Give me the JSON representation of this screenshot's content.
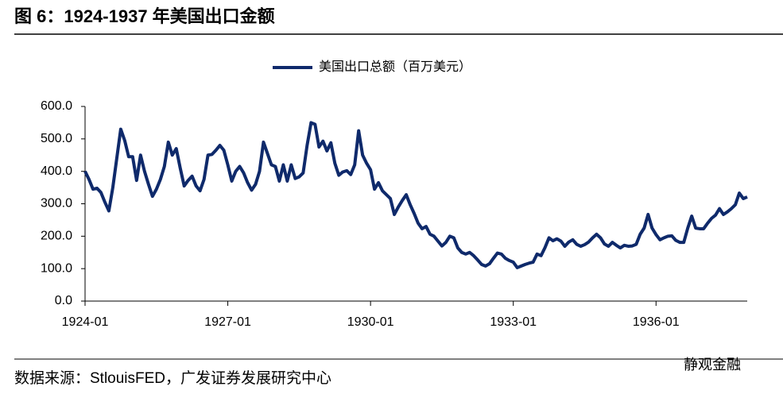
{
  "chart_data": {
    "type": "line",
    "title": "图 6：1924-1937 年美国出口金额",
    "source": "数据来源：StlouisFED，广发证券发展研究中心",
    "watermark": "静观金融",
    "x": [
      "1924-01",
      "1924-02",
      "1924-03",
      "1924-04",
      "1924-05",
      "1924-06",
      "1924-07",
      "1924-08",
      "1924-09",
      "1924-10",
      "1924-11",
      "1924-12",
      "1925-01",
      "1925-02",
      "1925-03",
      "1925-04",
      "1925-05",
      "1925-06",
      "1925-07",
      "1925-08",
      "1925-09",
      "1925-10",
      "1925-11",
      "1925-12",
      "1926-01",
      "1926-02",
      "1926-03",
      "1926-04",
      "1926-05",
      "1926-06",
      "1926-07",
      "1926-08",
      "1926-09",
      "1926-10",
      "1926-11",
      "1926-12",
      "1927-01",
      "1927-02",
      "1927-03",
      "1927-04",
      "1927-05",
      "1927-06",
      "1927-07",
      "1927-08",
      "1927-09",
      "1927-10",
      "1927-11",
      "1927-12",
      "1928-01",
      "1928-02",
      "1928-03",
      "1928-04",
      "1928-05",
      "1928-06",
      "1928-07",
      "1928-08",
      "1928-09",
      "1928-10",
      "1928-11",
      "1928-12",
      "1929-01",
      "1929-02",
      "1929-03",
      "1929-04",
      "1929-05",
      "1929-06",
      "1929-07",
      "1929-08",
      "1929-09",
      "1929-10",
      "1929-11",
      "1929-12",
      "1930-01",
      "1930-02",
      "1930-03",
      "1930-04",
      "1930-05",
      "1930-06",
      "1930-07",
      "1930-08",
      "1930-09",
      "1930-10",
      "1930-11",
      "1930-12",
      "1931-01",
      "1931-02",
      "1931-03",
      "1931-04",
      "1931-05",
      "1931-06",
      "1931-07",
      "1931-08",
      "1931-09",
      "1931-10",
      "1931-11",
      "1931-12",
      "1932-01",
      "1932-02",
      "1932-03",
      "1932-04",
      "1932-05",
      "1932-06",
      "1932-07",
      "1932-08",
      "1932-09",
      "1932-10",
      "1932-11",
      "1932-12",
      "1933-01",
      "1933-02",
      "1933-03",
      "1933-04",
      "1933-05",
      "1933-06",
      "1933-07",
      "1933-08",
      "1933-09",
      "1933-10",
      "1933-11",
      "1933-12",
      "1934-01",
      "1934-02",
      "1934-03",
      "1934-04",
      "1934-05",
      "1934-06",
      "1934-07",
      "1934-08",
      "1934-09",
      "1934-10",
      "1934-11",
      "1934-12",
      "1935-01",
      "1935-02",
      "1935-03",
      "1935-04",
      "1935-05",
      "1935-06",
      "1935-07",
      "1935-08",
      "1935-09",
      "1935-10",
      "1935-11",
      "1935-12",
      "1936-01",
      "1936-02",
      "1936-03",
      "1936-04",
      "1936-05",
      "1936-06",
      "1936-07",
      "1936-08",
      "1936-09",
      "1936-10",
      "1936-11",
      "1936-12",
      "1937-01",
      "1937-02",
      "1937-03",
      "1937-04",
      "1937-05",
      "1937-06",
      "1937-07",
      "1937-08",
      "1937-09",
      "1937-10",
      "1937-11",
      "1937-12"
    ],
    "xticks": [
      "1924-01",
      "1927-01",
      "1930-01",
      "1933-01",
      "1936-01"
    ],
    "series": [
      {
        "name": "美国出口总额（百万美元）",
        "color": "#0f2a6b",
        "values": [
          400,
          375,
          345,
          348,
          335,
          305,
          278,
          350,
          440,
          530,
          495,
          445,
          445,
          372,
          450,
          400,
          360,
          323,
          345,
          375,
          415,
          490,
          450,
          470,
          410,
          355,
          372,
          385,
          355,
          340,
          375,
          450,
          452,
          465,
          480,
          465,
          420,
          370,
          400,
          415,
          395,
          365,
          342,
          360,
          400,
          490,
          455,
          420,
          415,
          370,
          420,
          370,
          420,
          378,
          383,
          395,
          480,
          550,
          545,
          475,
          493,
          463,
          488,
          425,
          388,
          398,
          402,
          390,
          420,
          525,
          450,
          425,
          405,
          345,
          365,
          340,
          328,
          316,
          267,
          290,
          310,
          328,
          297,
          270,
          240,
          223,
          230,
          206,
          200,
          185,
          170,
          181,
          200,
          195,
          164,
          150,
          145,
          150,
          140,
          127,
          113,
          108,
          115,
          132,
          148,
          145,
          132,
          125,
          120,
          103,
          108,
          113,
          117,
          120,
          145,
          140,
          165,
          195,
          186,
          192,
          185,
          169,
          182,
          189,
          175,
          169,
          174,
          182,
          195,
          206,
          195,
          176,
          169,
          181,
          172,
          164,
          172,
          169,
          170,
          175,
          206,
          225,
          267,
          225,
          205,
          189,
          195,
          200,
          201,
          187,
          181,
          181,
          225,
          262,
          225,
          223,
          223,
          240,
          255,
          265,
          285,
          267,
          275,
          285,
          297,
          333,
          316,
          321
        ]
      }
    ],
    "ylim": [
      0,
      600
    ],
    "yticks": [
      {
        "value": 0,
        "label": "0.0"
      },
      {
        "value": 100,
        "label": "100.0"
      },
      {
        "value": 200,
        "label": "200.0"
      },
      {
        "value": 300,
        "label": "300.0"
      },
      {
        "value": 400,
        "label": "400.0"
      },
      {
        "value": 500,
        "label": "500.0"
      },
      {
        "value": 600,
        "label": "600.0"
      }
    ],
    "grid": false,
    "legend": "top"
  }
}
